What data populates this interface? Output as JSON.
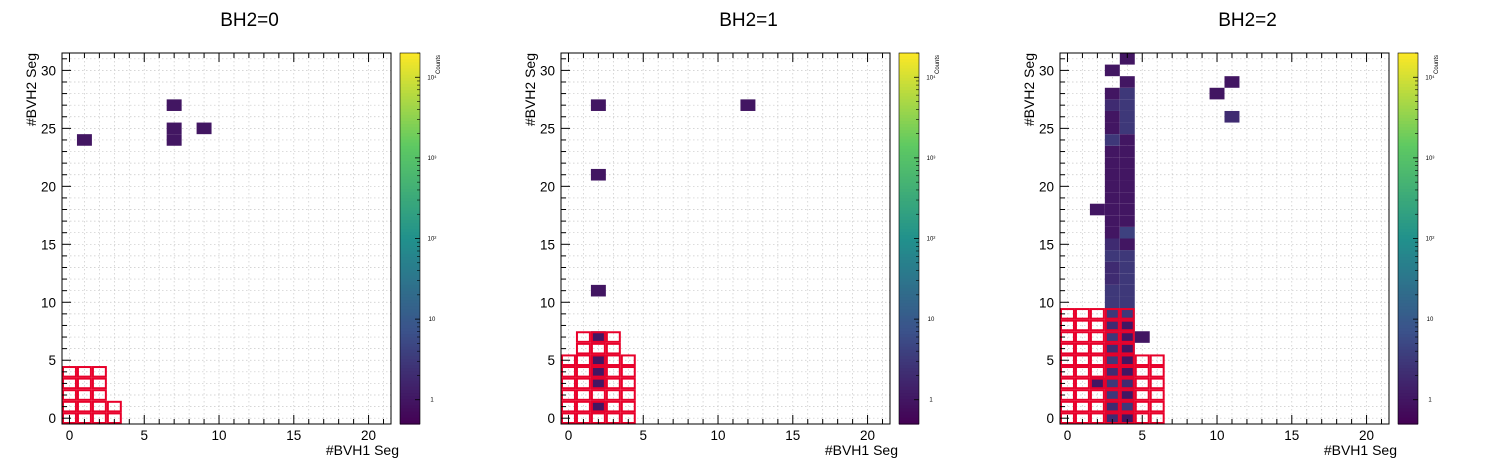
{
  "chart_data": [
    {
      "type": "heatmap",
      "title": "BH2=0",
      "xlabel": "#BVH1 Seg",
      "ylabel": "#BVH2 Seg",
      "zlabel": "Counts",
      "xlim": [
        -0.5,
        21.5
      ],
      "ylim": [
        -0.5,
        31.5
      ],
      "x_ticks": [
        0,
        5,
        10,
        15,
        20
      ],
      "y_ticks": [
        0,
        5,
        10,
        15,
        20,
        25,
        30
      ],
      "z_scale": "log",
      "zlim": [
        0.5,
        20000
      ],
      "z_tick_labels": [
        "1",
        "10",
        "10²",
        "10³",
        "10⁴"
      ],
      "colormap": [
        "#440154",
        "#3b528b",
        "#21918c",
        "#5ec962",
        "#fde725"
      ],
      "grid": true,
      "cells": [
        [
          1,
          24,
          1
        ],
        [
          7,
          27,
          1
        ],
        [
          7,
          25,
          1
        ],
        [
          7,
          24,
          1
        ],
        [
          9,
          25,
          1
        ]
      ],
      "box_color": "#e8002a",
      "boxes": [
        [
          0,
          0
        ],
        [
          1,
          0
        ],
        [
          2,
          0
        ],
        [
          3,
          0
        ],
        [
          0,
          1
        ],
        [
          1,
          1
        ],
        [
          2,
          1
        ],
        [
          3,
          1
        ],
        [
          0,
          2
        ],
        [
          1,
          2
        ],
        [
          2,
          2
        ],
        [
          0,
          3
        ],
        [
          1,
          3
        ],
        [
          2,
          3
        ],
        [
          0,
          4
        ],
        [
          1,
          4
        ],
        [
          2,
          4
        ]
      ]
    },
    {
      "type": "heatmap",
      "title": "BH2=1",
      "xlabel": "#BVH1 Seg",
      "ylabel": "#BVH2 Seg",
      "zlabel": "Counts",
      "xlim": [
        -0.5,
        21.5
      ],
      "ylim": [
        -0.5,
        31.5
      ],
      "x_ticks": [
        0,
        5,
        10,
        15,
        20
      ],
      "y_ticks": [
        0,
        5,
        10,
        15,
        20,
        25,
        30
      ],
      "z_scale": "log",
      "zlim": [
        0.5,
        20000
      ],
      "z_tick_labels": [
        "1",
        "10",
        "10²",
        "10³",
        "10⁴"
      ],
      "colormap": [
        "#440154",
        "#3b528b",
        "#21918c",
        "#5ec962",
        "#fde725"
      ],
      "grid": true,
      "cells": [
        [
          2,
          27,
          1
        ],
        [
          2,
          21,
          1
        ],
        [
          2,
          11,
          1
        ],
        [
          12,
          27,
          1
        ],
        [
          2,
          7,
          1
        ],
        [
          2,
          5,
          1
        ],
        [
          2,
          4,
          1
        ],
        [
          2,
          3,
          1
        ],
        [
          2,
          1,
          1
        ]
      ],
      "box_color": "#e8002a",
      "boxes": [
        [
          0,
          0
        ],
        [
          1,
          0
        ],
        [
          2,
          0
        ],
        [
          3,
          0
        ],
        [
          4,
          0
        ],
        [
          0,
          1
        ],
        [
          1,
          1
        ],
        [
          2,
          1
        ],
        [
          3,
          1
        ],
        [
          4,
          1
        ],
        [
          0,
          2
        ],
        [
          1,
          2
        ],
        [
          2,
          2
        ],
        [
          3,
          2
        ],
        [
          4,
          2
        ],
        [
          0,
          3
        ],
        [
          1,
          3
        ],
        [
          2,
          3
        ],
        [
          3,
          3
        ],
        [
          4,
          3
        ],
        [
          0,
          4
        ],
        [
          1,
          4
        ],
        [
          2,
          4
        ],
        [
          3,
          4
        ],
        [
          4,
          4
        ],
        [
          0,
          5
        ],
        [
          1,
          5
        ],
        [
          2,
          5
        ],
        [
          3,
          5
        ],
        [
          4,
          5
        ],
        [
          1,
          6
        ],
        [
          2,
          6
        ],
        [
          3,
          6
        ],
        [
          1,
          7
        ],
        [
          2,
          7
        ],
        [
          3,
          7
        ]
      ]
    },
    {
      "type": "heatmap",
      "title": "BH2=2",
      "xlabel": "#BVH1 Seg",
      "ylabel": "#BVH2 Seg",
      "zlabel": "Counts",
      "xlim": [
        -0.5,
        21.5
      ],
      "ylim": [
        -0.5,
        31.5
      ],
      "x_ticks": [
        0,
        5,
        10,
        15,
        20
      ],
      "y_ticks": [
        0,
        5,
        10,
        15,
        20,
        25,
        30
      ],
      "z_scale": "log",
      "zlim": [
        0.5,
        20000
      ],
      "z_tick_labels": [
        "1",
        "10",
        "10²",
        "10³",
        "10⁴"
      ],
      "colormap": [
        "#440154",
        "#3b528b",
        "#21918c",
        "#5ec962",
        "#fde725"
      ],
      "grid": true,
      "cells": [
        [
          3,
          0,
          2
        ],
        [
          3,
          1,
          2
        ],
        [
          3,
          2,
          3
        ],
        [
          3,
          3,
          3
        ],
        [
          3,
          4,
          2
        ],
        [
          3,
          5,
          3
        ],
        [
          3,
          6,
          2
        ],
        [
          3,
          7,
          3
        ],
        [
          3,
          8,
          2
        ],
        [
          3,
          9,
          3
        ],
        [
          3,
          10,
          3
        ],
        [
          3,
          11,
          3
        ],
        [
          3,
          12,
          2
        ],
        [
          3,
          13,
          2
        ],
        [
          3,
          14,
          3
        ],
        [
          3,
          15,
          2
        ],
        [
          3,
          16,
          1
        ],
        [
          3,
          17,
          1
        ],
        [
          3,
          18,
          1
        ],
        [
          3,
          19,
          1
        ],
        [
          3,
          20,
          1
        ],
        [
          3,
          21,
          1
        ],
        [
          3,
          22,
          1
        ],
        [
          3,
          23,
          1
        ],
        [
          3,
          24,
          3
        ],
        [
          3,
          25,
          1
        ],
        [
          3,
          26,
          1
        ],
        [
          3,
          27,
          2
        ],
        [
          3,
          28,
          1
        ],
        [
          3,
          30,
          1
        ],
        [
          4,
          0,
          1
        ],
        [
          4,
          1,
          3
        ],
        [
          4,
          2,
          1
        ],
        [
          4,
          3,
          2
        ],
        [
          4,
          4,
          1
        ],
        [
          4,
          5,
          1
        ],
        [
          4,
          6,
          1
        ],
        [
          4,
          7,
          1
        ],
        [
          4,
          8,
          1
        ],
        [
          4,
          9,
          3
        ],
        [
          4,
          10,
          3
        ],
        [
          4,
          11,
          3
        ],
        [
          4,
          12,
          3
        ],
        [
          4,
          13,
          3
        ],
        [
          4,
          14,
          3
        ],
        [
          4,
          15,
          1
        ],
        [
          4,
          16,
          4
        ],
        [
          4,
          17,
          1
        ],
        [
          4,
          18,
          1
        ],
        [
          4,
          19,
          1
        ],
        [
          4,
          20,
          1
        ],
        [
          4,
          21,
          1
        ],
        [
          4,
          22,
          1
        ],
        [
          4,
          23,
          1
        ],
        [
          4,
          24,
          1
        ],
        [
          4,
          25,
          3
        ],
        [
          4,
          26,
          3
        ],
        [
          4,
          27,
          3
        ],
        [
          4,
          28,
          3
        ],
        [
          4,
          29,
          1
        ],
        [
          4,
          31,
          1
        ],
        [
          2,
          3,
          1
        ],
        [
          5,
          7,
          1
        ],
        [
          2,
          18,
          1
        ],
        [
          10,
          28,
          1
        ],
        [
          11,
          29,
          1
        ],
        [
          11,
          26,
          2
        ]
      ],
      "box_color": "#e8002a",
      "boxes": [
        [
          0,
          0
        ],
        [
          1,
          0
        ],
        [
          2,
          0
        ],
        [
          3,
          0
        ],
        [
          4,
          0
        ],
        [
          5,
          0
        ],
        [
          6,
          0
        ],
        [
          0,
          1
        ],
        [
          1,
          1
        ],
        [
          2,
          1
        ],
        [
          3,
          1
        ],
        [
          4,
          1
        ],
        [
          5,
          1
        ],
        [
          6,
          1
        ],
        [
          0,
          2
        ],
        [
          1,
          2
        ],
        [
          2,
          2
        ],
        [
          3,
          2
        ],
        [
          4,
          2
        ],
        [
          5,
          2
        ],
        [
          6,
          2
        ],
        [
          0,
          3
        ],
        [
          1,
          3
        ],
        [
          2,
          3
        ],
        [
          3,
          3
        ],
        [
          4,
          3
        ],
        [
          5,
          3
        ],
        [
          6,
          3
        ],
        [
          0,
          4
        ],
        [
          1,
          4
        ],
        [
          2,
          4
        ],
        [
          3,
          4
        ],
        [
          4,
          4
        ],
        [
          5,
          4
        ],
        [
          6,
          4
        ],
        [
          0,
          5
        ],
        [
          1,
          5
        ],
        [
          2,
          5
        ],
        [
          3,
          5
        ],
        [
          4,
          5
        ],
        [
          5,
          5
        ],
        [
          6,
          5
        ],
        [
          0,
          6
        ],
        [
          1,
          6
        ],
        [
          2,
          6
        ],
        [
          3,
          6
        ],
        [
          4,
          6
        ],
        [
          0,
          7
        ],
        [
          1,
          7
        ],
        [
          2,
          7
        ],
        [
          3,
          7
        ],
        [
          4,
          7
        ],
        [
          0,
          8
        ],
        [
          1,
          8
        ],
        [
          2,
          8
        ],
        [
          3,
          8
        ],
        [
          4,
          8
        ],
        [
          0,
          9
        ],
        [
          1,
          9
        ],
        [
          2,
          9
        ],
        [
          3,
          9
        ],
        [
          4,
          9
        ]
      ]
    }
  ]
}
